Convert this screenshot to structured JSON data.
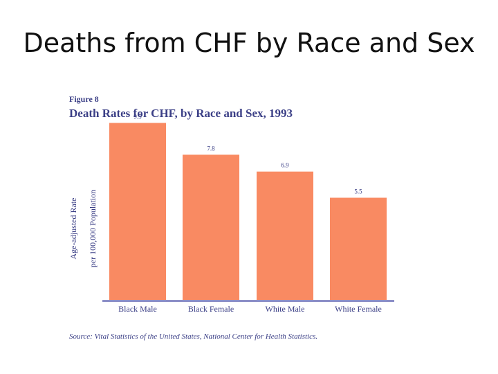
{
  "slide": {
    "title": "Deaths from CHF by Race and Sex"
  },
  "figure": {
    "label": "Figure 8",
    "title": "Death Rates for CHF, by Race and Sex, 1993",
    "source": "Source:  Vital Statistics of the United States, National Center for Health Statistics."
  },
  "chart_data": {
    "type": "bar",
    "title": "Death Rates for CHF, by Race and Sex, 1993",
    "ylabel_line1": "Age-adjusted Rate",
    "ylabel_line2": "per 100,000 Population",
    "categories": [
      "Black Male",
      "Black Female",
      "White Male",
      "White Female"
    ],
    "values": [
      9.5,
      7.8,
      6.9,
      5.5
    ],
    "value_labels": [
      "9.5",
      "7.8",
      "6.9",
      "5.5"
    ],
    "ylim": [
      0,
      10
    ],
    "grid": false,
    "bar_color": "#f98a62",
    "axis_color": "#8c8fc7",
    "text_color": "#3b3f86"
  }
}
